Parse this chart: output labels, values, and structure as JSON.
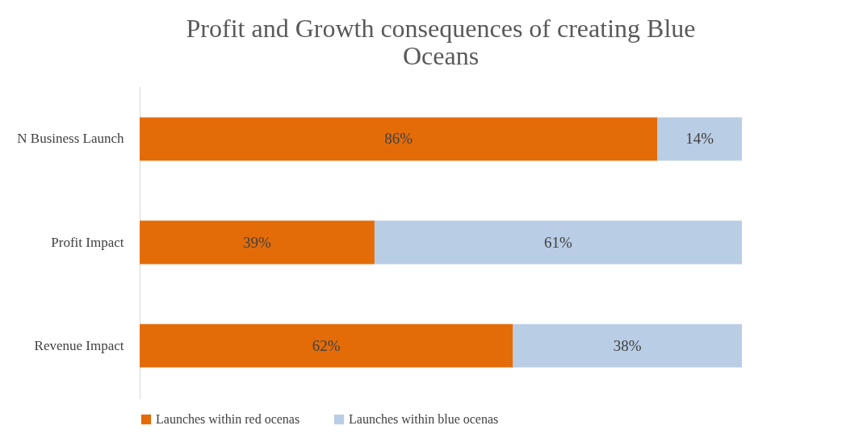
{
  "chart_data": {
    "type": "bar",
    "orientation": "horizontal",
    "stacked": true,
    "title": "Profit and Growth consequences of creating Blue Oceans",
    "categories": [
      "N Business Launch",
      "Profit Impact",
      "Revenue Impact"
    ],
    "series": [
      {
        "name": "Launches within red ocenas",
        "color": "#e36c09",
        "values": [
          86,
          39,
          62
        ],
        "value_labels": [
          "86%",
          "39%",
          "62%"
        ]
      },
      {
        "name": "Launches within blue ocenas",
        "color": "#b9cde5",
        "values": [
          14,
          61,
          38
        ],
        "value_labels": [
          "14%",
          "61%",
          "38%"
        ]
      }
    ],
    "legend": "bottom",
    "grid": false
  }
}
